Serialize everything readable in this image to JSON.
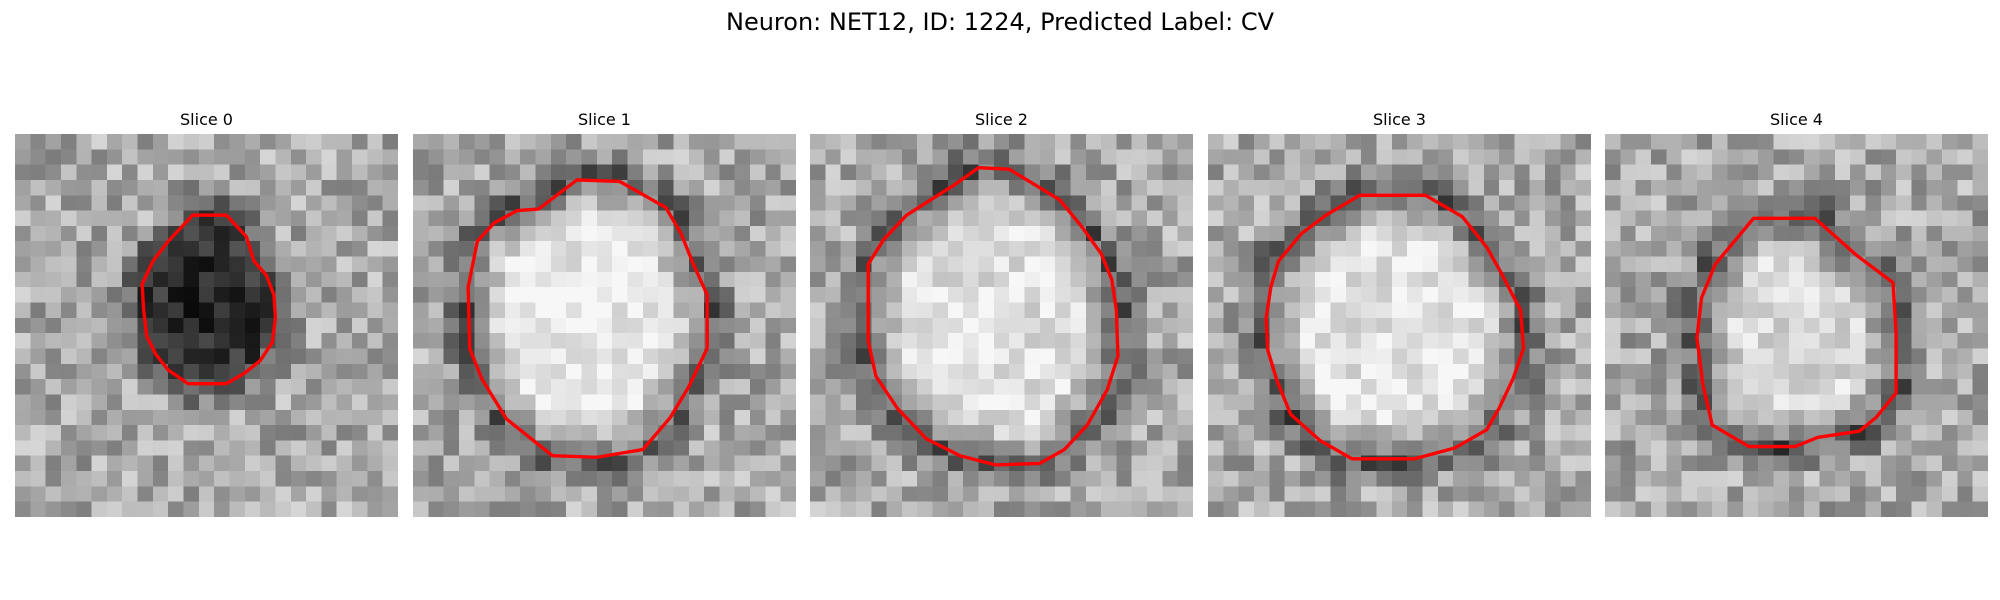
{
  "figure": {
    "title": "Neuron: NET12, ID: 1224, Predicted Label: CV"
  },
  "colors": {
    "contour": "#ff0000"
  },
  "panels": [
    {
      "title": "Slice 0",
      "bright_level": 0.8,
      "core_dark": true,
      "contour": [
        [
          11.6,
          5.3
        ],
        [
          13.8,
          5.3
        ],
        [
          15.1,
          6.7
        ],
        [
          15.6,
          8.3
        ],
        [
          16.4,
          9.2
        ],
        [
          16.9,
          10.5
        ],
        [
          17.0,
          12.0
        ],
        [
          16.8,
          13.6
        ],
        [
          16.0,
          14.8
        ],
        [
          15.0,
          15.6
        ],
        [
          13.8,
          16.3
        ],
        [
          11.3,
          16.3
        ],
        [
          10.0,
          15.4
        ],
        [
          9.2,
          14.4
        ],
        [
          8.6,
          13.2
        ],
        [
          8.4,
          11.5
        ],
        [
          8.3,
          9.8
        ],
        [
          9.0,
          8.3
        ],
        [
          10.0,
          7.0
        ]
      ]
    },
    {
      "title": "Slice 1",
      "bright_level": 0.93,
      "core_dark": false,
      "contour": [
        [
          8.2,
          4.9
        ],
        [
          10.7,
          3.0
        ],
        [
          13.5,
          3.1
        ],
        [
          16.5,
          4.8
        ],
        [
          17.5,
          6.5
        ],
        [
          18.3,
          8.5
        ],
        [
          19.2,
          10.5
        ],
        [
          19.2,
          14.0
        ],
        [
          18.0,
          16.5
        ],
        [
          16.8,
          18.5
        ],
        [
          15.0,
          20.6
        ],
        [
          12.0,
          21.1
        ],
        [
          9.1,
          21.0
        ],
        [
          6.1,
          18.6
        ],
        [
          4.5,
          16.0
        ],
        [
          3.7,
          14.0
        ],
        [
          3.6,
          10.0
        ],
        [
          4.2,
          7.0
        ],
        [
          5.3,
          5.8
        ],
        [
          6.8,
          5.0
        ]
      ]
    },
    {
      "title": "Slice 2",
      "bright_level": 0.88,
      "core_dark": false,
      "contour": [
        [
          9.3,
          3.4
        ],
        [
          11.0,
          2.2
        ],
        [
          13.0,
          2.3
        ],
        [
          14.5,
          3.2
        ],
        [
          16.3,
          4.3
        ],
        [
          17.7,
          6.0
        ],
        [
          19.0,
          7.8
        ],
        [
          19.7,
          9.5
        ],
        [
          20.0,
          11.5
        ],
        [
          20.1,
          14.5
        ],
        [
          19.4,
          16.7
        ],
        [
          18.1,
          19.0
        ],
        [
          16.6,
          20.6
        ],
        [
          15.0,
          21.5
        ],
        [
          12.1,
          21.6
        ],
        [
          9.8,
          21.0
        ],
        [
          7.6,
          19.9
        ],
        [
          5.7,
          17.9
        ],
        [
          4.3,
          15.8
        ],
        [
          3.8,
          13.5
        ],
        [
          3.8,
          8.5
        ],
        [
          4.8,
          6.9
        ],
        [
          6.3,
          5.3
        ]
      ]
    },
    {
      "title": "Slice 3",
      "bright_level": 0.9,
      "core_dark": false,
      "contour": [
        [
          7.7,
          5.3
        ],
        [
          9.9,
          4.0
        ],
        [
          14.2,
          4.0
        ],
        [
          16.6,
          5.4
        ],
        [
          18.2,
          7.4
        ],
        [
          19.1,
          9.0
        ],
        [
          20.4,
          11.5
        ],
        [
          20.6,
          14.0
        ],
        [
          19.9,
          16.0
        ],
        [
          19.0,
          17.9
        ],
        [
          18.2,
          19.3
        ],
        [
          16.1,
          20.5
        ],
        [
          13.5,
          21.2
        ],
        [
          9.4,
          21.2
        ],
        [
          7.3,
          20.0
        ],
        [
          5.4,
          18.3
        ],
        [
          4.5,
          16.1
        ],
        [
          3.9,
          14.1
        ],
        [
          3.8,
          12.0
        ],
        [
          4.1,
          10.0
        ],
        [
          4.6,
          8.3
        ],
        [
          6.1,
          6.5
        ]
      ]
    },
    {
      "title": "Slice 4",
      "bright_level": 0.86,
      "core_dark": false,
      "contour": [
        [
          9.7,
          5.5
        ],
        [
          13.7,
          5.5
        ],
        [
          16.4,
          7.9
        ],
        [
          18.8,
          9.7
        ],
        [
          19.0,
          13.0
        ],
        [
          19.0,
          16.9
        ],
        [
          17.7,
          18.5
        ],
        [
          16.6,
          19.4
        ],
        [
          13.9,
          19.8
        ],
        [
          12.4,
          20.4
        ],
        [
          9.4,
          20.4
        ],
        [
          7.0,
          19.0
        ],
        [
          6.4,
          16.4
        ],
        [
          6.0,
          13.3
        ],
        [
          6.3,
          10.7
        ],
        [
          7.2,
          8.5
        ]
      ]
    }
  ]
}
